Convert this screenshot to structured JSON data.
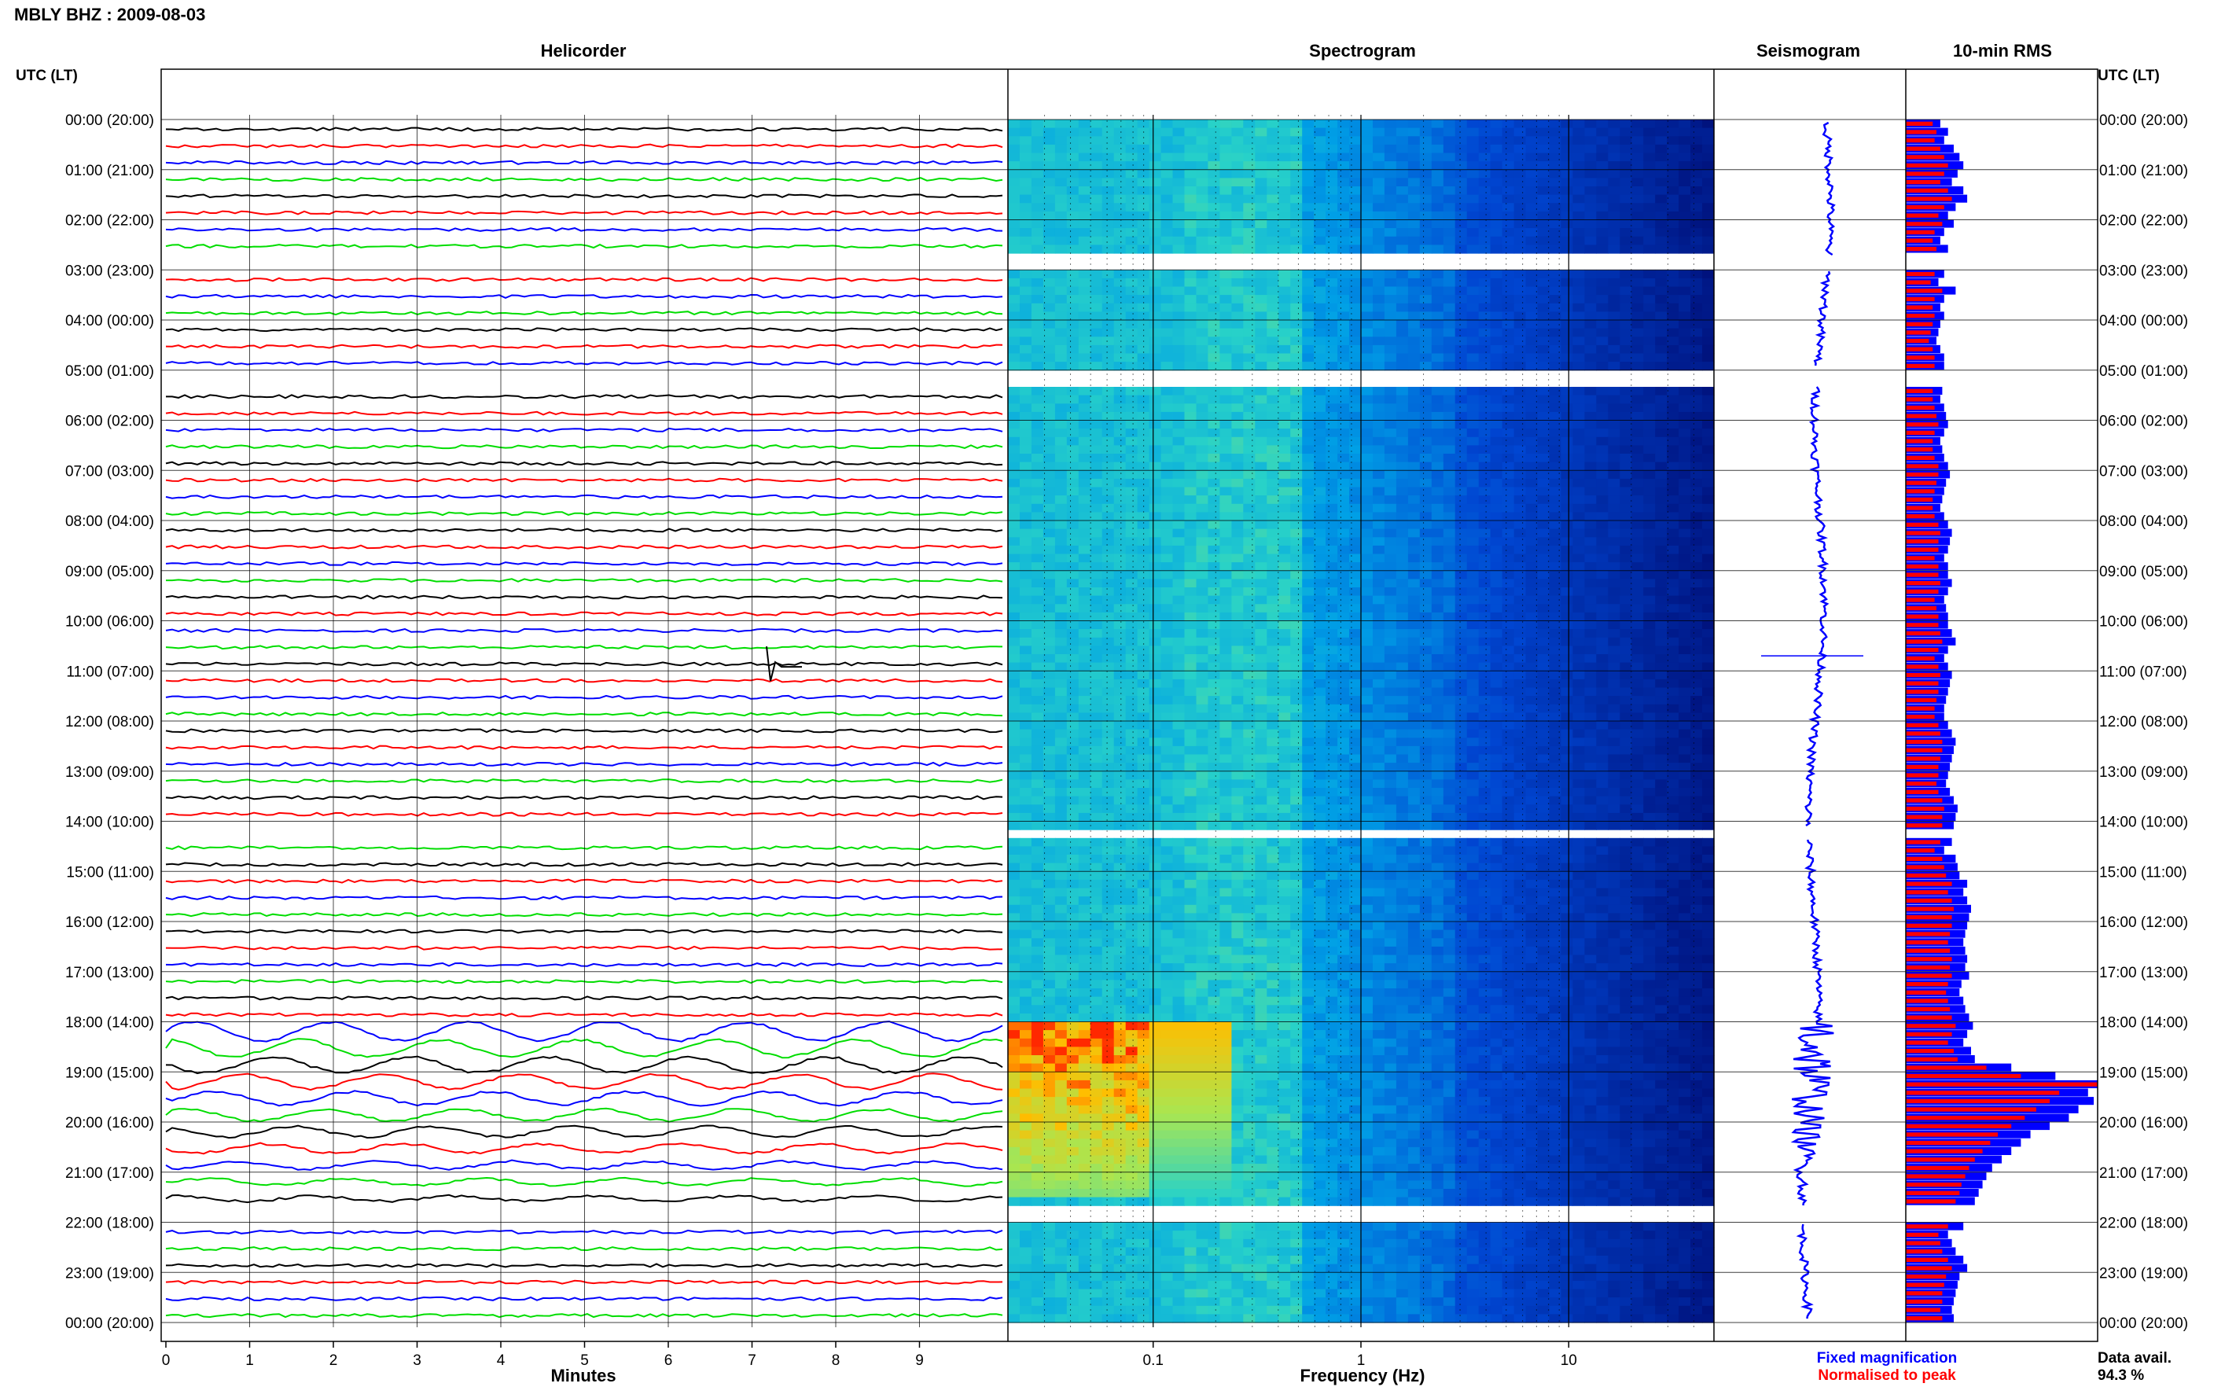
{
  "title": "MBLY BHZ : 2009-08-03",
  "panels": {
    "helicorder": "Helicorder",
    "spectrogram": "Spectrogram",
    "seismogram": "Seismogram",
    "rms": "10-min RMS"
  },
  "axis_header_left": "UTC (LT)",
  "axis_header_right": "UTC (LT)",
  "xlabel_helicorder": "Minutes",
  "xlabel_spectrogram": "Frequency (Hz)",
  "legend": {
    "fixed": "Fixed magnification",
    "normalised": "Normalised to peak",
    "fixed_color": "#0000ff",
    "normalised_color": "#ff0000"
  },
  "data_avail_label": "Data avail.",
  "data_avail_value": "94.3 %",
  "colors": {
    "trace_cycle": [
      "#000000",
      "#ff0000",
      "#0000ff",
      "#00dd00"
    ],
    "spectro_low": "#00107a",
    "spectro_mid": "#00a0e6",
    "spectro_high": "#ff3000"
  },
  "chart_data": {
    "type": "heatmap",
    "hour_labels": [
      "00:00 (20:00)",
      "01:00 (21:00)",
      "02:00 (22:00)",
      "03:00 (23:00)",
      "04:00 (00:00)",
      "05:00 (01:00)",
      "06:00 (02:00)",
      "07:00 (03:00)",
      "08:00 (04:00)",
      "09:00 (05:00)",
      "10:00 (06:00)",
      "11:00 (07:00)",
      "12:00 (08:00)",
      "13:00 (09:00)",
      "14:00 (10:00)",
      "15:00 (11:00)",
      "16:00 (12:00)",
      "17:00 (13:00)",
      "18:00 (14:00)",
      "19:00 (15:00)",
      "20:00 (16:00)",
      "21:00 (17:00)",
      "22:00 (18:00)",
      "23:00 (19:00)",
      "00:00 (20:00)"
    ],
    "minute_ticks": [
      "0",
      "1",
      "2",
      "3",
      "4",
      "5",
      "6",
      "7",
      "8",
      "9"
    ],
    "minute_range": [
      0,
      10
    ],
    "frequency_ticks": [
      "0.1",
      "1",
      "10"
    ],
    "frequency_range": [
      0.02,
      50
    ],
    "frequency_scale": "log",
    "hour_range": [
      0,
      24
    ],
    "gaps_hours": [
      [
        2.7,
        3.0
      ],
      [
        4.95,
        5.3
      ],
      [
        14.1,
        14.35
      ],
      [
        21.7,
        22.0
      ]
    ],
    "event_hours": [
      18.0,
      21.5
    ],
    "spike_hour": 10.7,
    "rms_fixed": [
      0.18,
      0.22,
      0.2,
      0.25,
      0.28,
      0.3,
      0.27,
      0.24,
      0.3,
      0.32,
      0.26,
      0.22,
      0.25,
      0.2,
      0.18,
      0.22,
      0.2,
      0.18,
      0.2,
      0.17,
      0.26,
      0.2,
      0.18,
      0.2,
      0.18,
      0.17,
      0.16,
      0.18,
      0.2,
      0.2,
      0.22,
      0.2,
      0.19,
      0.18,
      0.2,
      0.21,
      0.22,
      0.2,
      0.18,
      0.19,
      0.2,
      0.22,
      0.23,
      0.21,
      0.2,
      0.19,
      0.18,
      0.2,
      0.22,
      0.24,
      0.23,
      0.22,
      0.2,
      0.22,
      0.22,
      0.24,
      0.22,
      0.2,
      0.21,
      0.22,
      0.22,
      0.24,
      0.26,
      0.22,
      0.2,
      0.22,
      0.24,
      0.23,
      0.22,
      0.21,
      0.2,
      0.2,
      0.22,
      0.24,
      0.26,
      0.25,
      0.24,
      0.23,
      0.22,
      0.21,
      0.23,
      0.25,
      0.27,
      0.26,
      0.25,
      0.24,
      0.24,
      0.2,
      0.26,
      0.27,
      0.28,
      0.32,
      0.3,
      0.32,
      0.34,
      0.33,
      0.32,
      0.31,
      0.3,
      0.31,
      0.32,
      0.31,
      0.33,
      0.29,
      0.28,
      0.3,
      0.31,
      0.33,
      0.35,
      0.32,
      0.3,
      0.34,
      0.36,
      0.55,
      0.78,
      1.0,
      0.95,
      0.98,
      0.9,
      0.85,
      0.75,
      0.65,
      0.6,
      0.55,
      0.5,
      0.45,
      0.42,
      0.4,
      0.38,
      0.36,
      0.35,
      0.3,
      0.3,
      0.22,
      0.24,
      0.26,
      0.3,
      0.32,
      0.28,
      0.27,
      0.26,
      0.25,
      0.24,
      0.25
    ],
    "rms_normalised": [
      0.14,
      0.16,
      0.15,
      0.18,
      0.2,
      0.22,
      0.2,
      0.18,
      0.22,
      0.24,
      0.2,
      0.17,
      0.19,
      0.15,
      0.14,
      0.16,
      0.15,
      0.14,
      0.15,
      0.13,
      0.19,
      0.15,
      0.14,
      0.15,
      0.14,
      0.13,
      0.12,
      0.14,
      0.15,
      0.15,
      0.17,
      0.15,
      0.14,
      0.14,
      0.15,
      0.16,
      0.17,
      0.15,
      0.14,
      0.14,
      0.15,
      0.17,
      0.17,
      0.16,
      0.15,
      0.14,
      0.14,
      0.15,
      0.17,
      0.18,
      0.17,
      0.17,
      0.15,
      0.17,
      0.17,
      0.18,
      0.17,
      0.15,
      0.16,
      0.17,
      0.17,
      0.18,
      0.19,
      0.17,
      0.15,
      0.17,
      0.18,
      0.17,
      0.17,
      0.16,
      0.15,
      0.15,
      0.17,
      0.18,
      0.19,
      0.19,
      0.18,
      0.17,
      0.17,
      0.16,
      0.17,
      0.19,
      0.2,
      0.19,
      0.19,
      0.18,
      0.18,
      0.15,
      0.19,
      0.2,
      0.21,
      0.24,
      0.22,
      0.24,
      0.25,
      0.24,
      0.24,
      0.23,
      0.22,
      0.23,
      0.24,
      0.23,
      0.24,
      0.22,
      0.21,
      0.22,
      0.23,
      0.24,
      0.26,
      0.24,
      0.22,
      0.25,
      0.27,
      0.42,
      0.6,
      1.0,
      0.8,
      0.75,
      0.68,
      0.62,
      0.55,
      0.48,
      0.44,
      0.4,
      0.36,
      0.33,
      0.31,
      0.29,
      0.28,
      0.26,
      0.25,
      0.22,
      0.22,
      0.17,
      0.18,
      0.19,
      0.22,
      0.24,
      0.21,
      0.2,
      0.19,
      0.19,
      0.18,
      0.19
    ]
  }
}
